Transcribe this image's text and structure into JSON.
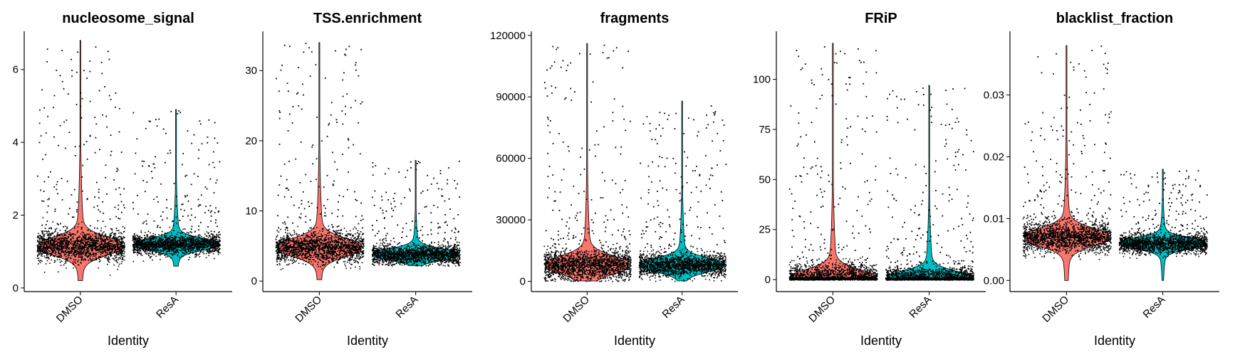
{
  "chart_data": [
    {
      "type": "violin",
      "title": "nucleosome_signal",
      "xlabel": "Identity",
      "ylabel": "",
      "categories": [
        "DMSO",
        "ResA"
      ],
      "ylim": [
        -0.1,
        7.05
      ],
      "yticks": [
        0,
        2,
        4,
        6
      ],
      "yticklabels": [
        "0",
        "2",
        "4",
        "6"
      ],
      "series": [
        {
          "category": "DMSO",
          "color": "#F8766D",
          "min": 0.2,
          "max": 6.8,
          "median": 1.1,
          "mode": 1.15
        },
        {
          "category": "ResA",
          "color": "#00BFC4",
          "min": 0.6,
          "max": 4.9,
          "median": 1.2,
          "mode": 1.2
        }
      ],
      "grid": false,
      "legend": "none"
    },
    {
      "type": "violin",
      "title": "TSS.enrichment",
      "xlabel": "Identity",
      "ylabel": "",
      "categories": [
        "DMSO",
        "ResA"
      ],
      "ylim": [
        -1.5,
        35.6
      ],
      "yticks": [
        0,
        10,
        20,
        30
      ],
      "yticklabels": [
        "0",
        "10",
        "20",
        "30"
      ],
      "series": [
        {
          "category": "DMSO",
          "color": "#F8766D",
          "min": 0.2,
          "max": 34.0,
          "median": 4.8,
          "mode": 4.8
        },
        {
          "category": "ResA",
          "color": "#00BFC4",
          "min": 2.2,
          "max": 17.2,
          "median": 3.8,
          "mode": 3.8
        }
      ],
      "grid": false,
      "legend": "none"
    },
    {
      "type": "violin",
      "title": "fragments",
      "xlabel": "Identity",
      "ylabel": "",
      "categories": [
        "DMSO",
        "ResA"
      ],
      "ylim": [
        -5000,
        122000
      ],
      "yticks": [
        0,
        30000,
        60000,
        90000,
        120000
      ],
      "yticklabels": [
        "0",
        "30000",
        "60000",
        "90000",
        "120000"
      ],
      "series": [
        {
          "category": "DMSO",
          "color": "#F8766D",
          "min": 200,
          "max": 116000,
          "median": 9000,
          "mode": 8000
        },
        {
          "category": "ResA",
          "color": "#00BFC4",
          "min": 200,
          "max": 88000,
          "median": 10000,
          "mode": 8000
        }
      ],
      "grid": false,
      "legend": "none"
    },
    {
      "type": "violin",
      "title": "FRiP",
      "xlabel": "Identity",
      "ylabel": "",
      "categories": [
        "DMSO",
        "ResA"
      ],
      "ylim": [
        -6,
        124
      ],
      "yticks": [
        0,
        25,
        50,
        75,
        100
      ],
      "yticklabels": [
        "0",
        "25",
        "50",
        "75",
        "100"
      ],
      "series": [
        {
          "category": "DMSO",
          "color": "#F8766D",
          "min": 0,
          "max": 118,
          "median": 1,
          "mode": 0.5
        },
        {
          "category": "ResA",
          "color": "#00BFC4",
          "min": 0,
          "max": 97,
          "median": 1,
          "mode": 0.5
        }
      ],
      "grid": false,
      "legend": "none"
    },
    {
      "type": "violin",
      "title": "blacklist_fraction",
      "xlabel": "Identity",
      "ylabel": "",
      "categories": [
        "DMSO",
        "ResA"
      ],
      "ylim": [
        -0.0018,
        0.0403
      ],
      "yticks": [
        0,
        0.01,
        0.02,
        0.03
      ],
      "yticklabels": [
        "0.00",
        "0.01",
        "0.02",
        "0.03"
      ],
      "series": [
        {
          "category": "DMSO",
          "color": "#F8766D",
          "min": 0.0,
          "max": 0.038,
          "median": 0.007,
          "mode": 0.007
        },
        {
          "category": "ResA",
          "color": "#00BFC4",
          "min": 0.0,
          "max": 0.018,
          "median": 0.006,
          "mode": 0.006
        }
      ],
      "grid": false,
      "legend": "none"
    }
  ]
}
